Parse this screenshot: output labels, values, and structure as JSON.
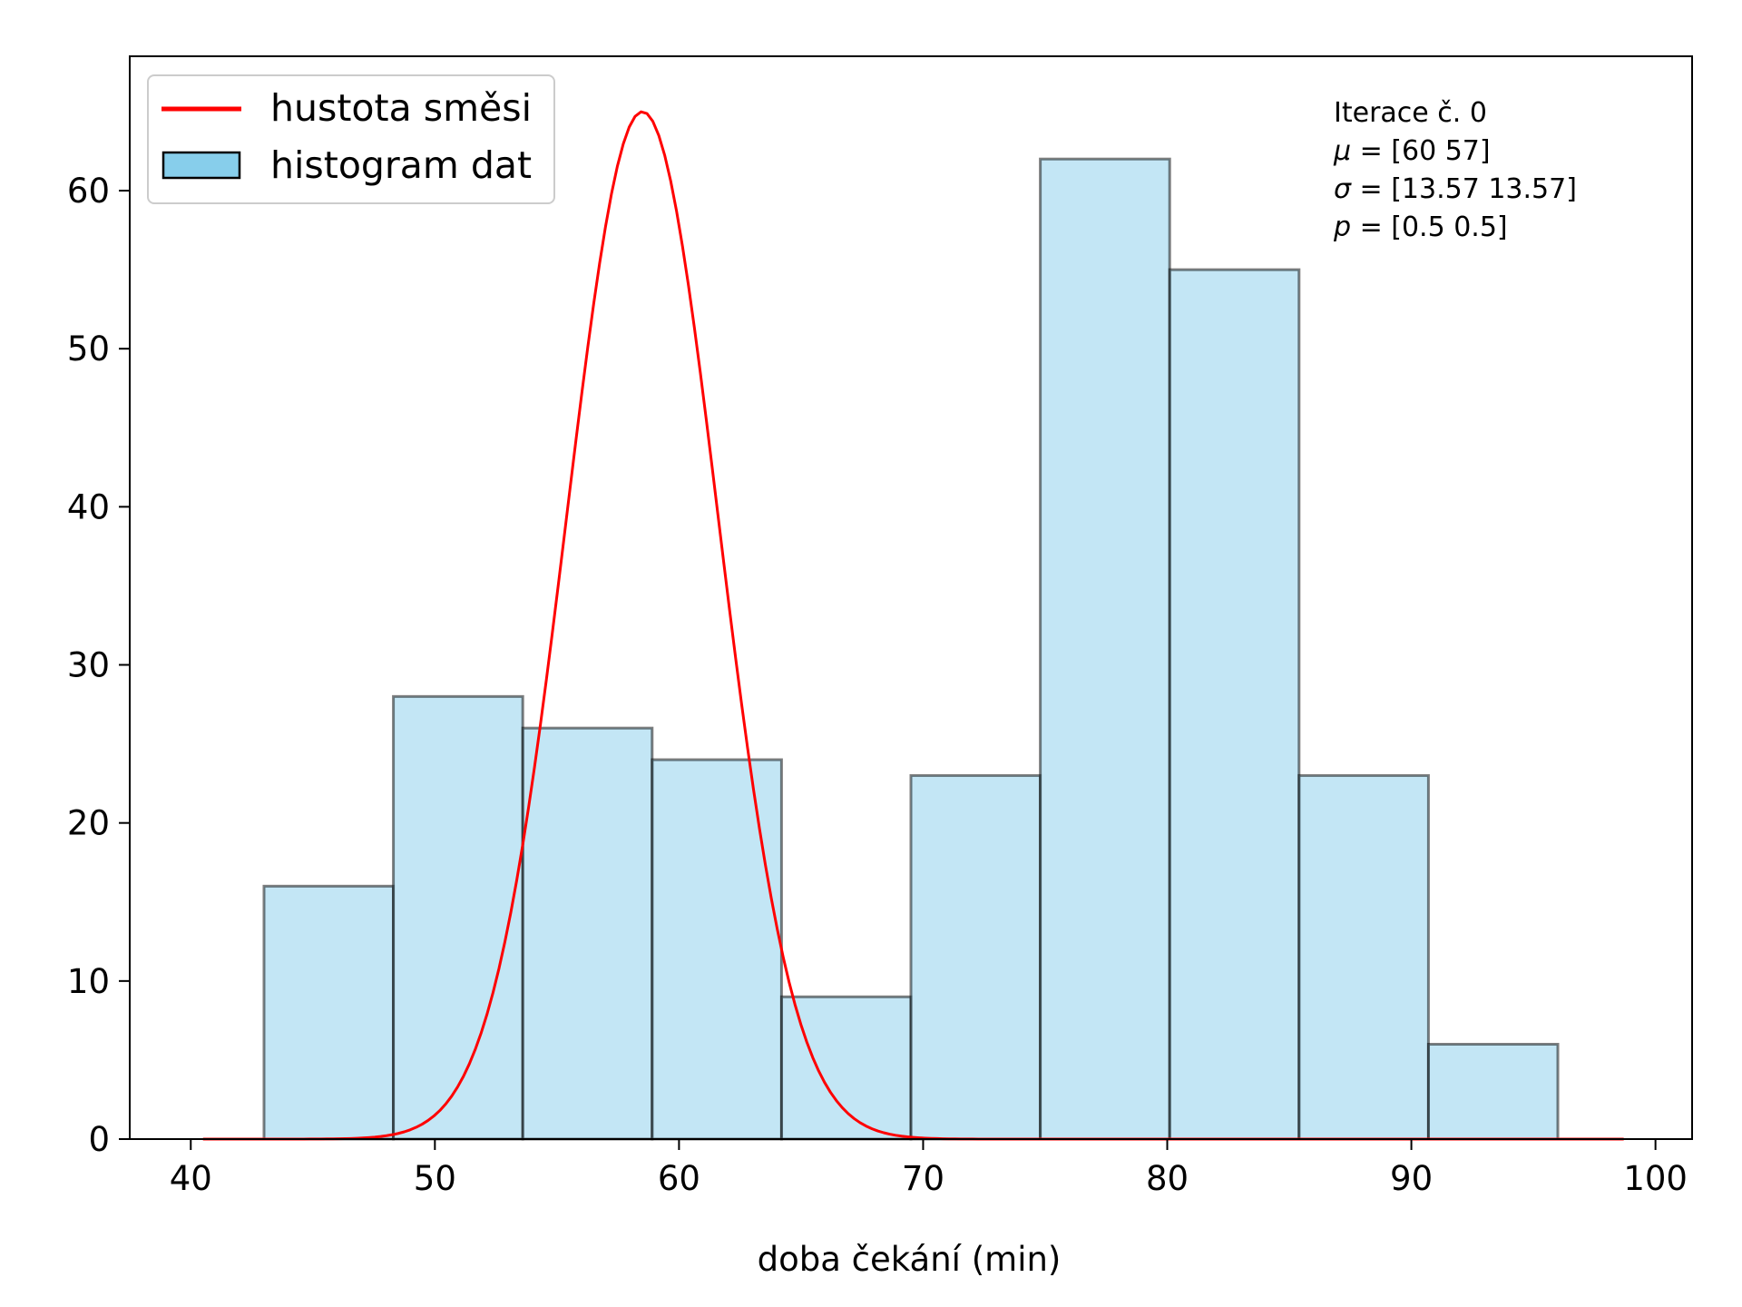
{
  "chart_data": {
    "type": "bar",
    "title": "",
    "xlabel": "doba čekání (min)",
    "ylabel": "",
    "xlim": [
      37.5,
      101.5
    ],
    "ylim": [
      0,
      68.5
    ],
    "xticks": [
      40,
      50,
      60,
      70,
      80,
      90,
      100
    ],
    "yticks": [
      0,
      10,
      20,
      30,
      40,
      50,
      60
    ],
    "grid": false,
    "legend_position": "top-left",
    "series": [
      {
        "name": "histogram dat",
        "kind": "histogram",
        "color": "#87ceeb",
        "edge_color": "#000000",
        "bin_edges": [
          43.0,
          48.3,
          53.6,
          58.9,
          64.2,
          69.5,
          74.8,
          80.1,
          85.4,
          90.7,
          96.0
        ],
        "values": [
          16,
          28,
          26,
          24,
          9,
          23,
          62,
          55,
          23,
          6
        ]
      },
      {
        "name": "hustota směsi",
        "kind": "line",
        "color": "#ff0000",
        "x_range": [
          40.5,
          98.7
        ],
        "peak_x": 58.5,
        "peak_y": 65,
        "spread": 3.1
      }
    ],
    "annotation": {
      "lines": [
        {
          "symbol": "",
          "text": "Iterace č. 0"
        },
        {
          "symbol": "μ",
          "text": " = [60 57]"
        },
        {
          "symbol": "σ",
          "text": " = [13.57 13.57]"
        },
        {
          "symbol": "p",
          "text": " = [0.5 0.5]"
        }
      ]
    }
  }
}
